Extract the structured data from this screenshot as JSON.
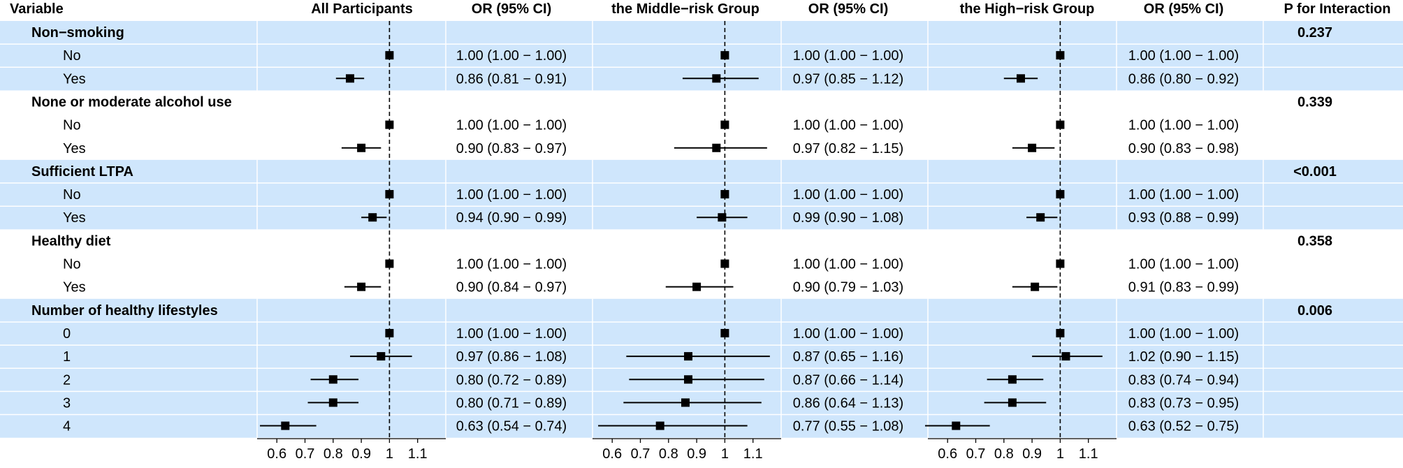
{
  "headers": {
    "variable": "Variable",
    "panels": [
      "All Participants",
      "the Middle−risk Group",
      "the High−risk Group"
    ],
    "or": "OR (95% CI)",
    "p": "P for Interaction"
  },
  "colors": {
    "band": "#cfe6fc",
    "band_sep": "#ffffff",
    "marker": "#000000",
    "ref_line": "#000000"
  },
  "x_ticks": [
    0.6,
    0.7,
    0.8,
    0.9,
    1,
    1.1
  ],
  "chart_data": {
    "type": "forest",
    "xlim": [
      0.53,
      1.2
    ],
    "reference_line": 1,
    "tick_labels": [
      "0.6",
      "0.7",
      "0.8",
      "0.9",
      "1",
      "1.1"
    ],
    "panels": [
      "All Participants",
      "the Middle−risk Group",
      "the High−risk Group"
    ],
    "groups": [
      {
        "label": "Non−smoking",
        "p": "0.237",
        "shaded": true,
        "rows": [
          {
            "label": "No",
            "est": [
              [
                1.0,
                1.0,
                1.0
              ],
              [
                1.0,
                1.0,
                1.0
              ],
              [
                1.0,
                1.0,
                1.0
              ]
            ],
            "text": [
              "1.00 (1.00 − 1.00)",
              "1.00 (1.00 − 1.00)",
              "1.00 (1.00 − 1.00)"
            ]
          },
          {
            "label": "Yes",
            "est": [
              [
                0.86,
                0.81,
                0.91
              ],
              [
                0.97,
                0.85,
                1.12
              ],
              [
                0.86,
                0.8,
                0.92
              ]
            ],
            "text": [
              "0.86 (0.81 − 0.91)",
              "0.97 (0.85 − 1.12)",
              "0.86 (0.80 − 0.92)"
            ]
          }
        ]
      },
      {
        "label": "None or moderate alcohol use",
        "p": "0.339",
        "shaded": false,
        "rows": [
          {
            "label": "No",
            "est": [
              [
                1.0,
                1.0,
                1.0
              ],
              [
                1.0,
                1.0,
                1.0
              ],
              [
                1.0,
                1.0,
                1.0
              ]
            ],
            "text": [
              "1.00 (1.00 − 1.00)",
              "1.00 (1.00 − 1.00)",
              "1.00 (1.00 − 1.00)"
            ]
          },
          {
            "label": "Yes",
            "est": [
              [
                0.9,
                0.83,
                0.97
              ],
              [
                0.97,
                0.82,
                1.15
              ],
              [
                0.9,
                0.83,
                0.98
              ]
            ],
            "text": [
              "0.90 (0.83 − 0.97)",
              "0.97 (0.82 − 1.15)",
              "0.90 (0.83 − 0.98)"
            ]
          }
        ]
      },
      {
        "label": "Sufficient LTPA",
        "p": "<0.001",
        "shaded": true,
        "rows": [
          {
            "label": "No",
            "est": [
              [
                1.0,
                1.0,
                1.0
              ],
              [
                1.0,
                1.0,
                1.0
              ],
              [
                1.0,
                1.0,
                1.0
              ]
            ],
            "text": [
              "1.00 (1.00 − 1.00)",
              "1.00 (1.00 − 1.00)",
              "1.00 (1.00 − 1.00)"
            ]
          },
          {
            "label": "Yes",
            "est": [
              [
                0.94,
                0.9,
                0.99
              ],
              [
                0.99,
                0.9,
                1.08
              ],
              [
                0.93,
                0.88,
                0.99
              ]
            ],
            "text": [
              "0.94 (0.90 − 0.99)",
              "0.99 (0.90 − 1.08)",
              "0.93 (0.88 − 0.99)"
            ]
          }
        ]
      },
      {
        "label": "Healthy diet",
        "p": "0.358",
        "shaded": false,
        "rows": [
          {
            "label": "No",
            "est": [
              [
                1.0,
                1.0,
                1.0
              ],
              [
                1.0,
                1.0,
                1.0
              ],
              [
                1.0,
                1.0,
                1.0
              ]
            ],
            "text": [
              "1.00 (1.00 − 1.00)",
              "1.00 (1.00 − 1.00)",
              "1.00 (1.00 − 1.00)"
            ]
          },
          {
            "label": "Yes",
            "est": [
              [
                0.9,
                0.84,
                0.97
              ],
              [
                0.9,
                0.79,
                1.03
              ],
              [
                0.91,
                0.83,
                0.99
              ]
            ],
            "text": [
              "0.90 (0.84 − 0.97)",
              "0.90 (0.79 − 1.03)",
              "0.91 (0.83 − 0.99)"
            ]
          }
        ]
      },
      {
        "label": "Number of healthy lifestyles",
        "p": "0.006",
        "shaded": true,
        "rows": [
          {
            "label": "0",
            "est": [
              [
                1.0,
                1.0,
                1.0
              ],
              [
                1.0,
                1.0,
                1.0
              ],
              [
                1.0,
                1.0,
                1.0
              ]
            ],
            "text": [
              "1.00 (1.00 − 1.00)",
              "1.00 (1.00 − 1.00)",
              "1.00 (1.00 − 1.00)"
            ]
          },
          {
            "label": "1",
            "est": [
              [
                0.97,
                0.86,
                1.08
              ],
              [
                0.87,
                0.65,
                1.16
              ],
              [
                1.02,
                0.9,
                1.15
              ]
            ],
            "text": [
              "0.97 (0.86 − 1.08)",
              "0.87 (0.65 − 1.16)",
              "1.02 (0.90 − 1.15)"
            ]
          },
          {
            "label": "2",
            "est": [
              [
                0.8,
                0.72,
                0.89
              ],
              [
                0.87,
                0.66,
                1.14
              ],
              [
                0.83,
                0.74,
                0.94
              ]
            ],
            "text": [
              "0.80 (0.72 − 0.89)",
              "0.87 (0.66 − 1.14)",
              "0.83 (0.74 − 0.94)"
            ]
          },
          {
            "label": "3",
            "est": [
              [
                0.8,
                0.71,
                0.89
              ],
              [
                0.86,
                0.64,
                1.13
              ],
              [
                0.83,
                0.73,
                0.95
              ]
            ],
            "text": [
              "0.80 (0.71 − 0.89)",
              "0.86 (0.64 − 1.13)",
              "0.83 (0.73 − 0.95)"
            ]
          },
          {
            "label": "4",
            "est": [
              [
                0.63,
                0.54,
                0.74
              ],
              [
                0.77,
                0.55,
                1.08
              ],
              [
                0.63,
                0.52,
                0.75
              ]
            ],
            "text": [
              "0.63 (0.54 − 0.74)",
              "0.77 (0.55 − 1.08)",
              "0.63 (0.52 − 0.75)"
            ]
          }
        ]
      }
    ]
  }
}
